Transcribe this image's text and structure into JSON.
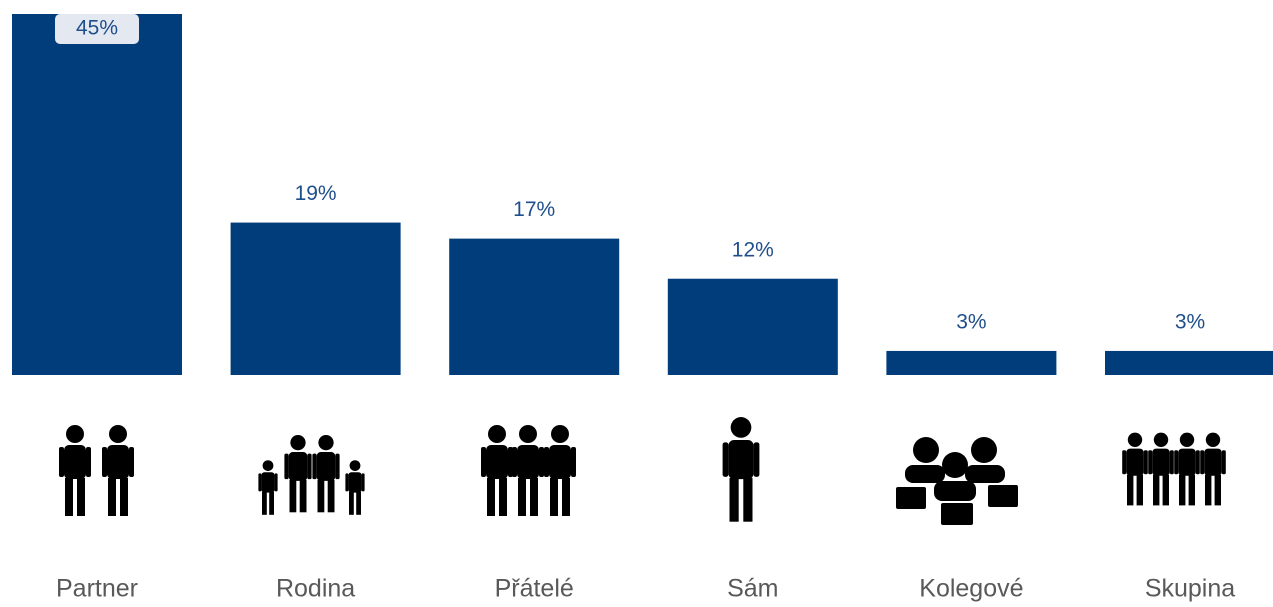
{
  "chart_data": {
    "type": "bar",
    "categories": [
      "Partner",
      "Rodina",
      "Přátelé",
      "Sám",
      "Kolegové",
      "Skupina"
    ],
    "values": [
      45,
      19,
      17,
      12,
      3,
      3
    ],
    "value_labels": [
      "45%",
      "19%",
      "17%",
      "12%",
      "3%",
      "3%"
    ],
    "color": "#003d7a"
  }
}
